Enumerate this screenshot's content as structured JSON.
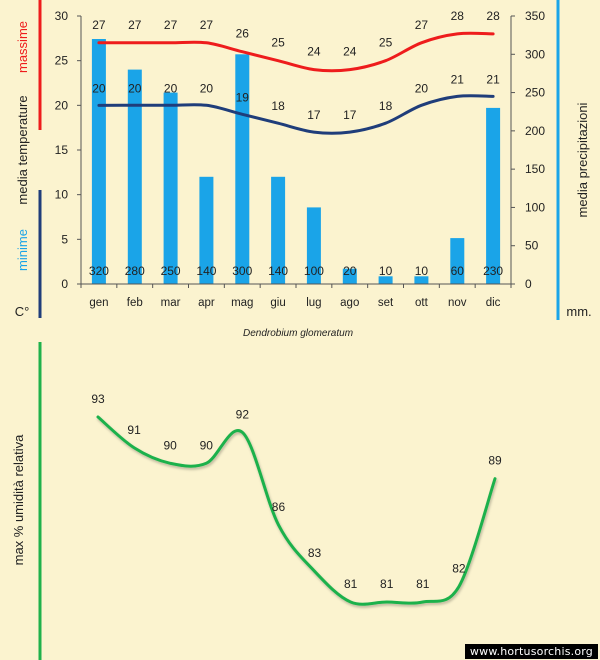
{
  "chart_data": [
    {
      "type": "bar+line",
      "title": "Dendrobium glomeratum",
      "categories": [
        "gen",
        "feb",
        "mar",
        "apr",
        "mag",
        "giu",
        "lug",
        "ago",
        "set",
        "ott",
        "nov",
        "dic"
      ],
      "left_axis": {
        "ylim": [
          0,
          30
        ],
        "ticks": [
          0,
          5,
          10,
          15,
          20,
          25,
          30
        ],
        "unit": "C°",
        "labels": [
          "massime",
          "media temperature",
          "minime"
        ]
      },
      "right_axis": {
        "ylim": [
          0,
          350
        ],
        "ticks": [
          0,
          50,
          100,
          150,
          200,
          250,
          300,
          350
        ],
        "unit": "mm.",
        "label": "media precipitazioni"
      },
      "series": [
        {
          "name": "media precipitazioni",
          "kind": "bar",
          "axis": "right",
          "color": "#1aa4e8",
          "values": [
            320,
            280,
            250,
            140,
            300,
            140,
            100,
            20,
            10,
            10,
            60,
            230
          ]
        },
        {
          "name": "massime",
          "kind": "line",
          "axis": "left",
          "color": "#ee1c1c",
          "values": [
            27,
            27,
            27,
            27,
            26,
            25,
            24,
            24,
            25,
            27,
            28,
            28
          ]
        },
        {
          "name": "minime",
          "kind": "line",
          "axis": "left",
          "color": "#1f3d7a",
          "values": [
            20,
            20,
            20,
            20,
            19,
            18,
            17,
            17,
            18,
            20,
            21,
            21
          ]
        }
      ]
    },
    {
      "type": "line",
      "ylabel": "max % umidità relativa",
      "series": [
        {
          "name": "max % umidità relativa",
          "color": "#1fb14b",
          "values": [
            93,
            91,
            90,
            90,
            92,
            86,
            83,
            81,
            81,
            81,
            82,
            89
          ]
        }
      ]
    }
  ],
  "watermark": "www.hortusorchis.org"
}
